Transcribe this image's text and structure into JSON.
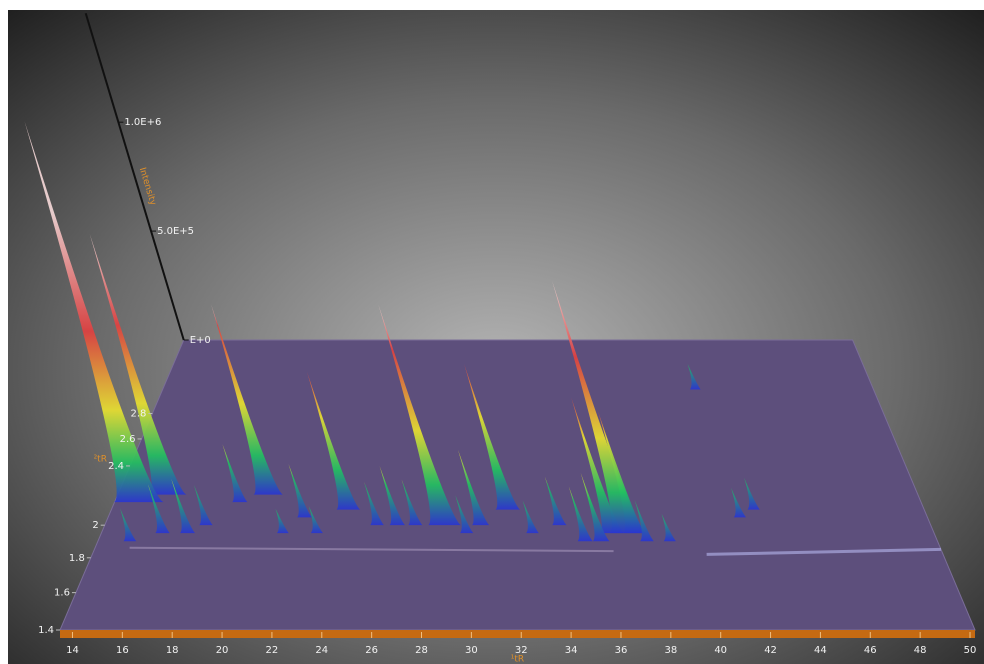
{
  "chart_data": {
    "type": "surface3d",
    "x_label": "¹tR",
    "y_label": "²tR",
    "z_label": "Intensity",
    "xlim": [
      13.5,
      50.2
    ],
    "ylim": [
      1.4,
      3.45
    ],
    "zlim": [
      0,
      1500000
    ],
    "xticks": [
      14,
      16,
      18,
      20,
      22,
      24,
      26,
      28,
      30,
      32,
      34,
      36,
      38,
      40,
      42,
      44,
      46,
      48,
      50
    ],
    "yticks": [
      1.4,
      1.6,
      1.8,
      2,
      2.4,
      2.6,
      2.8
    ],
    "zticks": [
      {
        "value": 0,
        "label": "E+0"
      },
      {
        "value": 500000,
        "label": "5.0E+5"
      },
      {
        "value": 1000000,
        "label": "1.0E+6"
      }
    ],
    "floor_color": "#5d4f7c",
    "colormap": [
      {
        "value": 0,
        "color": "#2a35d0"
      },
      {
        "value": 150000,
        "color": "#22c060"
      },
      {
        "value": 350000,
        "color": "#e8e030"
      },
      {
        "value": 650000,
        "color": "#e04040"
      },
      {
        "value": 1100000,
        "color": "#f3d6d6"
      }
    ],
    "peaks": [
      {
        "x": 41.0,
        "y": 3.0,
        "z": 110000
      },
      {
        "x": 15.8,
        "y": 2.2,
        "z": 1000000
      },
      {
        "x": 20.4,
        "y": 2.2,
        "z": 730000
      },
      {
        "x": 19.2,
        "y": 2.15,
        "z": 220000
      },
      {
        "x": 14.6,
        "y": 2.15,
        "z": 1450000
      },
      {
        "x": 24.2,
        "y": 2.1,
        "z": 520000
      },
      {
        "x": 31.4,
        "y": 2.1,
        "z": 550000
      },
      {
        "x": 42.5,
        "y": 2.1,
        "z": 120000
      },
      {
        "x": 22.3,
        "y": 2.05,
        "z": 200000
      },
      {
        "x": 41.8,
        "y": 2.05,
        "z": 110000
      },
      {
        "x": 26.5,
        "y": 2.0,
        "z": 220000
      },
      {
        "x": 27.3,
        "y": 2.0,
        "z": 170000
      },
      {
        "x": 28.6,
        "y": 2.0,
        "z": 820000
      },
      {
        "x": 30.2,
        "y": 2.0,
        "z": 280000
      },
      {
        "x": 33.7,
        "y": 2.0,
        "z": 180000
      },
      {
        "x": 25.6,
        "y": 2.0,
        "z": 160000
      },
      {
        "x": 18.0,
        "y": 2.0,
        "z": 150000
      },
      {
        "x": 16.2,
        "y": 1.95,
        "z": 180000
      },
      {
        "x": 17.3,
        "y": 1.95,
        "z": 200000
      },
      {
        "x": 36.0,
        "y": 1.95,
        "z": 500000
      },
      {
        "x": 36.7,
        "y": 1.95,
        "z": 930000
      },
      {
        "x": 37.0,
        "y": 1.95,
        "z": 450000
      },
      {
        "x": 29.6,
        "y": 1.95,
        "z": 140000
      },
      {
        "x": 32.5,
        "y": 1.95,
        "z": 120000
      },
      {
        "x": 21.5,
        "y": 1.95,
        "z": 90000
      },
      {
        "x": 23.0,
        "y": 1.95,
        "z": 100000
      },
      {
        "x": 14.9,
        "y": 1.9,
        "z": 120000
      },
      {
        "x": 35.5,
        "y": 1.9,
        "z": 250000
      },
      {
        "x": 34.8,
        "y": 1.9,
        "z": 200000
      },
      {
        "x": 37.5,
        "y": 1.9,
        "z": 150000
      },
      {
        "x": 38.5,
        "y": 1.9,
        "z": 100000
      }
    ]
  }
}
